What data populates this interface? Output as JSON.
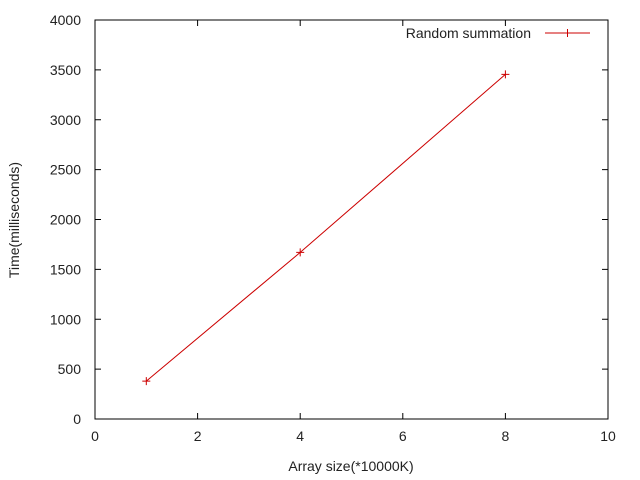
{
  "chart_data": {
    "type": "line",
    "title": "",
    "xlabel": "Array size(*10000K)",
    "ylabel": "Time(milliseconds)",
    "xlim": [
      0,
      10
    ],
    "ylim": [
      0,
      4000
    ],
    "x_ticks": [
      0,
      2,
      4,
      6,
      8,
      10
    ],
    "y_ticks": [
      0,
      500,
      1000,
      1500,
      2000,
      2500,
      3000,
      3500,
      4000
    ],
    "grid": false,
    "legend": {
      "position": "top-right"
    },
    "series": [
      {
        "name": "Random summation",
        "color": "#cc0000",
        "marker": "plus",
        "x": [
          1,
          4,
          8
        ],
        "y": [
          380,
          1670,
          3455
        ]
      }
    ]
  }
}
